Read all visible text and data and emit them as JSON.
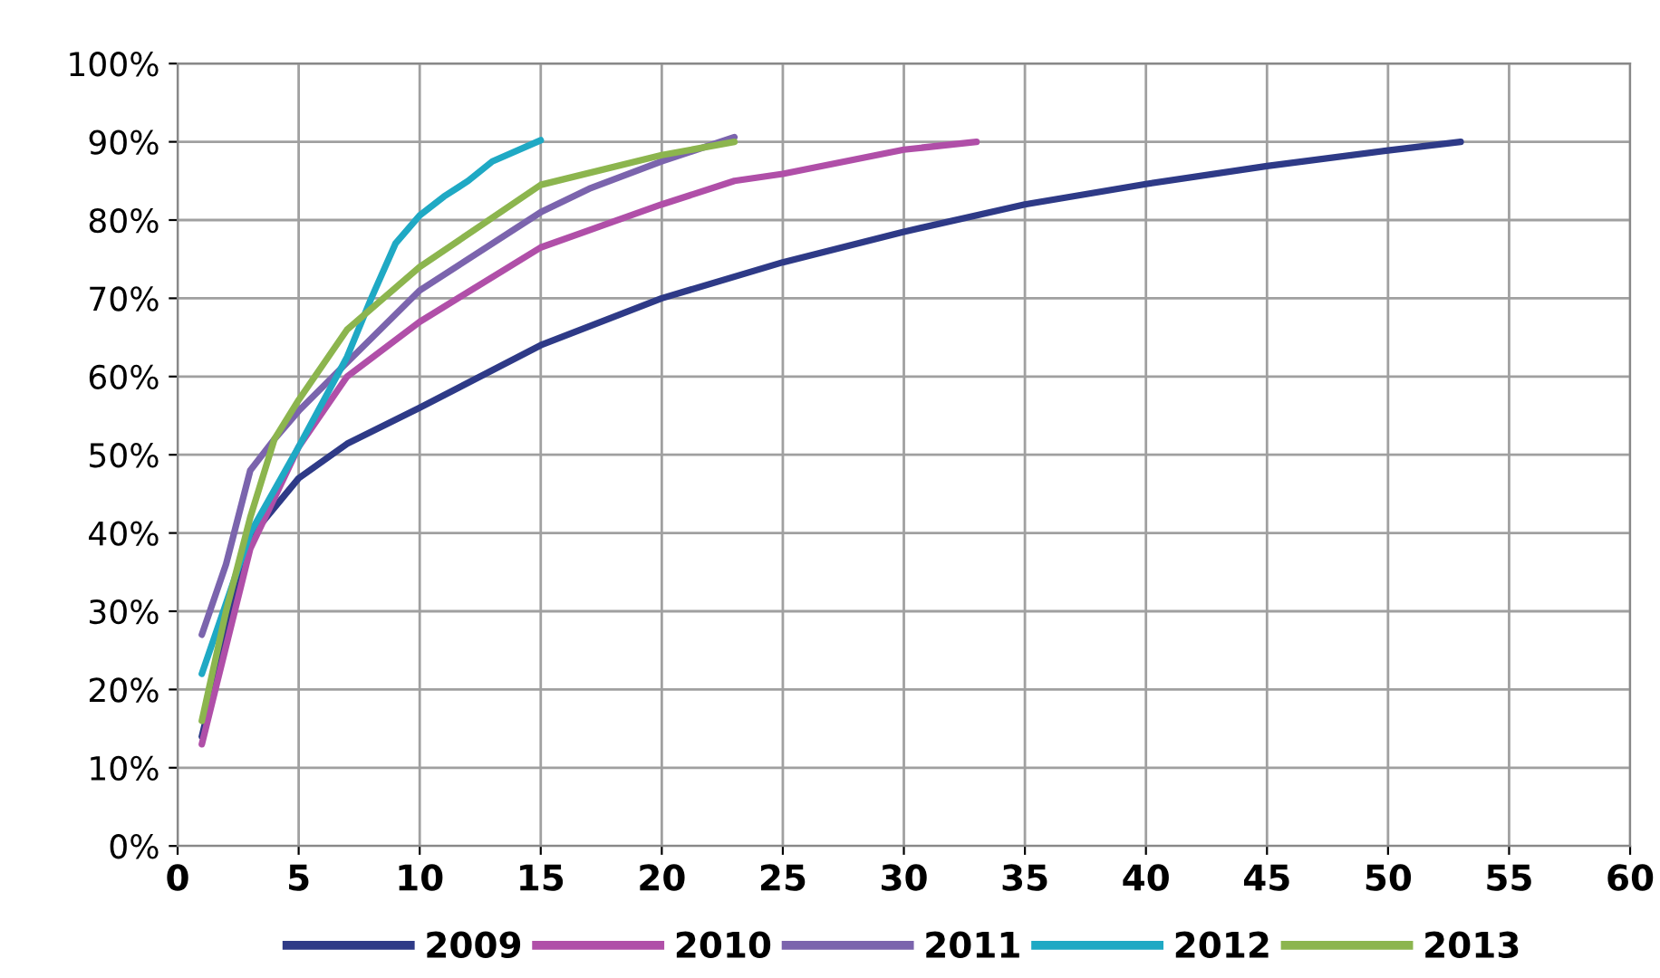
{
  "chart_data": {
    "type": "line",
    "series": [
      {
        "name": "2009",
        "color": "#2e3a87",
        "x": [
          1,
          3,
          5,
          7,
          10,
          15,
          20,
          25,
          30,
          35,
          40,
          45,
          50,
          53
        ],
        "values": [
          14,
          39.5,
          47,
          51.4,
          56,
          64,
          70,
          74.6,
          78.5,
          82,
          84.6,
          86.9,
          88.9,
          90
        ]
      },
      {
        "name": "2010",
        "color": "#b04fa8",
        "x": [
          1,
          3,
          5,
          7,
          10,
          15,
          20,
          23,
          25,
          30,
          33
        ],
        "values": [
          13,
          38,
          51,
          60,
          67,
          76.5,
          82,
          85,
          85.9,
          89,
          90
        ]
      },
      {
        "name": "2011",
        "color": "#7b64ad",
        "x": [
          1,
          2,
          3,
          4,
          5,
          7,
          10,
          15,
          17,
          20,
          23
        ],
        "values": [
          27,
          36,
          48,
          52,
          55.6,
          61.8,
          71,
          81,
          84,
          87.5,
          90.6
        ]
      },
      {
        "name": "2012",
        "color": "#1fa9c4",
        "x": [
          1,
          3,
          5,
          7,
          8,
          9,
          10,
          11,
          12,
          13,
          15
        ],
        "values": [
          22,
          40,
          51,
          62.5,
          70,
          77,
          80.6,
          83,
          85,
          87.5,
          90.2
        ]
      },
      {
        "name": "2013",
        "color": "#8cb54e",
        "x": [
          1,
          2,
          3,
          4,
          5,
          7,
          10,
          15,
          20,
          23
        ],
        "values": [
          16,
          30,
          42,
          52,
          57,
          66,
          74,
          84.5,
          88.3,
          90
        ]
      }
    ],
    "xlim": [
      0,
      60
    ],
    "xticks": [
      0,
      5,
      10,
      15,
      20,
      25,
      30,
      35,
      40,
      45,
      50,
      55,
      60
    ],
    "ylim": [
      0,
      100
    ],
    "yticks": [
      {
        "value": 0,
        "label": "0%"
      },
      {
        "value": 10,
        "label": "10%"
      },
      {
        "value": 20,
        "label": "20%"
      },
      {
        "value": 30,
        "label": "30%"
      },
      {
        "value": 40,
        "label": "40%"
      },
      {
        "value": 50,
        "label": "50%"
      },
      {
        "value": 60,
        "label": "60%"
      },
      {
        "value": 70,
        "label": "70%"
      },
      {
        "value": 80,
        "label": "80%"
      },
      {
        "value": 90,
        "label": "90%"
      },
      {
        "value": 100,
        "label": "100%"
      }
    ],
    "grid": true,
    "legend": "bottom",
    "marker": "none",
    "line_style": "solid"
  }
}
